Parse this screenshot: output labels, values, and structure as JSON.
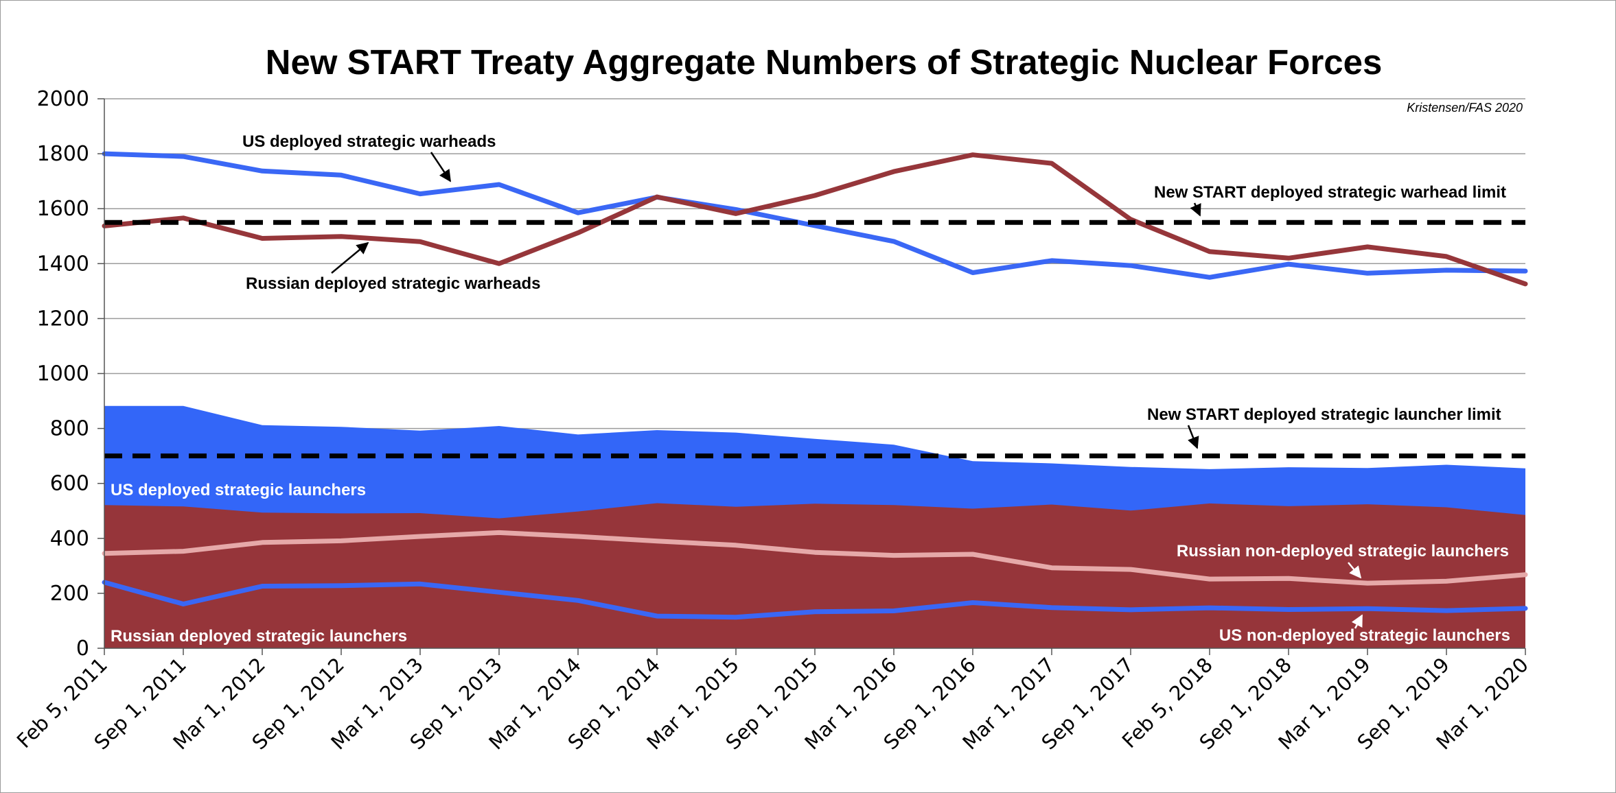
{
  "chart_data": {
    "type": "line",
    "title": "New START Treaty Aggregate Numbers of Strategic Nuclear Forces",
    "credit": "Kristensen/FAS 2020",
    "xlabel": "",
    "ylabel": "",
    "ylim": [
      0,
      2000
    ],
    "yticks": [
      0,
      200,
      400,
      600,
      800,
      1000,
      1200,
      1400,
      1600,
      1800,
      2000
    ],
    "grid": true,
    "categories": [
      "Feb 5, 2011",
      "Sep 1, 2011",
      "Mar 1, 2012",
      "Sep 1, 2012",
      "Mar 1, 2013",
      "Sep 1, 2013",
      "Mar 1, 2014",
      "Sep 1, 2014",
      "Mar 1, 2015",
      "Sep 1, 2015",
      "Mar 1, 2016",
      "Sep 1, 2016",
      "Mar 1, 2017",
      "Sep 1, 2017",
      "Feb 5, 2018",
      "Sep 1, 2018",
      "Mar 1, 2019",
      "Sep 1, 2019",
      "Mar 1, 2020"
    ],
    "series": [
      {
        "name": "US deployed strategic warheads",
        "kind": "line",
        "color": "#3a67f5",
        "values": [
          1800,
          1790,
          1737,
          1722,
          1654,
          1688,
          1585,
          1642,
          1597,
          1538,
          1481,
          1367,
          1411,
          1393,
          1350,
          1398,
          1365,
          1376,
          1373
        ]
      },
      {
        "name": "Russian deployed strategic warheads",
        "kind": "line",
        "color": "#96363a",
        "values": [
          1537,
          1566,
          1492,
          1499,
          1480,
          1400,
          1512,
          1643,
          1582,
          1648,
          1735,
          1796,
          1765,
          1561,
          1444,
          1420,
          1461,
          1426,
          1326
        ]
      },
      {
        "name": "US deployed strategic launchers",
        "kind": "area",
        "color": "#3366f8",
        "values": [
          882,
          882,
          812,
          806,
          792,
          809,
          778,
          794,
          785,
          762,
          741,
          681,
          673,
          660,
          652,
          659,
          656,
          668,
          655
        ]
      },
      {
        "name": "Russian deployed strategic launchers",
        "kind": "area",
        "color": "#96353a",
        "values": [
          521,
          516,
          494,
          491,
          492,
          473,
          498,
          528,
          515,
          526,
          521,
          508,
          523,
          501,
          527,
          517,
          524,
          513,
          485
        ]
      },
      {
        "name": "Russian non-deployed strategic launchers",
        "kind": "line",
        "color": "#e6a9a9",
        "values": [
          345,
          353,
          385,
          391,
          407,
          421,
          407,
          390,
          375,
          349,
          338,
          342,
          293,
          287,
          252,
          254,
          237,
          244,
          268
        ]
      },
      {
        "name": "US non-deployed strategic launchers",
        "kind": "line",
        "color": "#3a67f5",
        "values": [
          240,
          161,
          226,
          228,
          234,
          204,
          174,
          117,
          113,
          133,
          136,
          166,
          148,
          140,
          147,
          141,
          144,
          137,
          145
        ]
      }
    ],
    "limits": [
      {
        "label": "New START deployed strategic warhead limit",
        "value": 1550
      },
      {
        "label": "New START deployed strategic launcher limit",
        "value": 700
      }
    ]
  },
  "colors": {
    "us": "#3366f8",
    "russia": "#96353a",
    "russia_nondeployed": "#e6a9a9",
    "limit": "#000000"
  }
}
